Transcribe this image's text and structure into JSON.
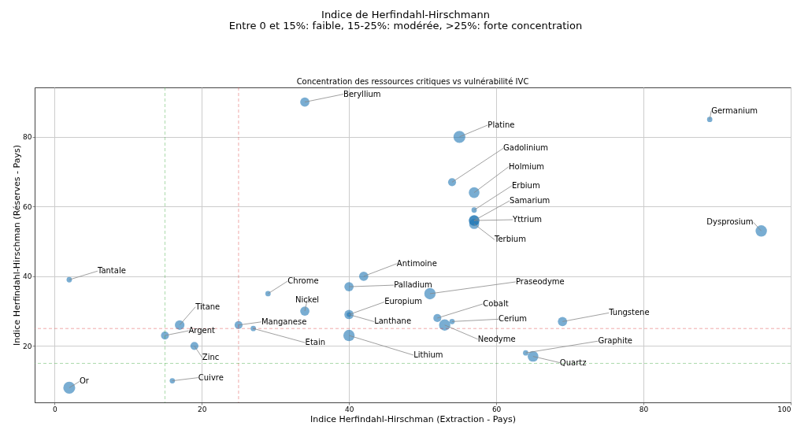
{
  "chart_data": {
    "type": "bubble",
    "title": "Indice de Herfindahl-Hirschmann",
    "subtitle": "Entre 0 et 15%: faible, 15-25%: modérée, >25%: forte concentration",
    "xlabel": "Indice Herfindahl-Hirschman (Extraction - Pays)",
    "ylabel": "Indice Herfindahl-Hirschman (Réserves - Pays)",
    "annotations": [
      "Concentration des ressources critiques vs vulnérabilité IVC",
      {
        "text": "Beryllium",
        "x": 34,
        "y": 90
      },
      {
        "text": "Or",
        "x": 2,
        "y": 8
      },
      {
        "text": "Tantale",
        "x": 2,
        "y": 39
      },
      {
        "text": "Cuivre",
        "x": 16,
        "y": 10
      },
      {
        "text": "Argent",
        "x": 15,
        "y": 23
      },
      {
        "text": "Zinc",
        "x": 19,
        "y": 20
      },
      {
        "text": "Titane",
        "x": 17,
        "y": 26
      },
      {
        "text": "Manganese",
        "x": 25,
        "y": 26
      },
      {
        "text": "Etain",
        "x": 27,
        "y": 25
      },
      {
        "text": "Chrome",
        "x": 29,
        "y": 35
      },
      {
        "text": "Nickel",
        "x": 34,
        "y": 30
      },
      {
        "text": "Palladium",
        "x": 40,
        "y": 37
      },
      {
        "text": "Antimoine",
        "x": 42,
        "y": 40
      },
      {
        "text": "Europium",
        "x": 40,
        "y": 29
      },
      {
        "text": "Lanthane",
        "x": 40,
        "y": 29
      },
      {
        "text": "Lithium",
        "x": 40,
        "y": 23
      },
      {
        "text": "Praseodyme",
        "x": 51,
        "y": 35
      },
      {
        "text": "Cobalt",
        "x": 52,
        "y": 28
      },
      {
        "text": "Cerium",
        "x": 54,
        "y": 27
      },
      {
        "text": "Neodyme",
        "x": 53,
        "y": 26
      },
      {
        "text": "Platine",
        "x": 55,
        "y": 80
      },
      {
        "text": "Gadolinium",
        "x": 54,
        "y": 67
      },
      {
        "text": "Holmium",
        "x": 57,
        "y": 64
      },
      {
        "text": "Erbium",
        "x": 57,
        "y": 59
      },
      {
        "text": "Samarium",
        "x": 57,
        "y": 56
      },
      {
        "text": "Yttrium",
        "x": 57,
        "y": 56
      },
      {
        "text": "Terbium",
        "x": 57,
        "y": 55
      },
      {
        "text": "Germanium",
        "x": 89,
        "y": 85
      },
      {
        "text": "Dysprosium",
        "x": 96,
        "y": 53
      },
      {
        "text": "Tungstene",
        "x": 69,
        "y": 27
      },
      {
        "text": "Graphite",
        "x": 64,
        "y": 18
      },
      {
        "text": "Quartz",
        "x": 65,
        "y": 17
      }
    ],
    "series": [
      {
        "color": "#1f77b4",
        "x": [
          34,
          2,
          2,
          16,
          15,
          19,
          17,
          25,
          27,
          29,
          34,
          40,
          42,
          40,
          40,
          40,
          51,
          52,
          54,
          53,
          55,
          54,
          57,
          57,
          57,
          57,
          57,
          89,
          96,
          69,
          64,
          65
        ],
        "values": [
          90,
          8,
          39,
          10,
          23,
          20,
          26,
          26,
          25,
          35,
          30,
          37,
          40,
          29,
          29,
          23,
          35,
          28,
          27,
          26,
          80,
          67,
          64,
          59,
          56,
          56,
          55,
          85,
          53,
          27,
          18,
          17
        ],
        "sizes": [
          0.6,
          1.0,
          0.2,
          0.2,
          0.45,
          0.45,
          0.65,
          0.45,
          0.2,
          0.2,
          0.6,
          0.6,
          0.6,
          0.6,
          0.15,
          0.9,
          0.9,
          0.45,
          0.2,
          0.9,
          1.0,
          0.45,
          0.8,
          0.2,
          0.8,
          0.75,
          0.7,
          0.2,
          0.9,
          0.6,
          0.2,
          0.8
        ]
      }
    ],
    "xlim": [
      -2.7,
      100
    ],
    "ylim": [
      3.8,
      94.2
    ],
    "xticks": [
      0,
      20,
      40,
      60,
      80,
      100
    ],
    "yticks": [
      20,
      40,
      60,
      80
    ],
    "ref_lines": [
      {
        "axis": "x",
        "value": 15,
        "color": "#2ca02c",
        "line_style": "dashed"
      },
      {
        "axis": "x",
        "value": 25,
        "color": "#d62728",
        "line_style": "dashed"
      },
      {
        "axis": "y",
        "value": 25,
        "color": "#d62728",
        "line_style": "dashed"
      },
      {
        "axis": "y",
        "value": 15,
        "color": "#2ca02c",
        "line_style": "dashed"
      }
    ],
    "grid": true
  }
}
